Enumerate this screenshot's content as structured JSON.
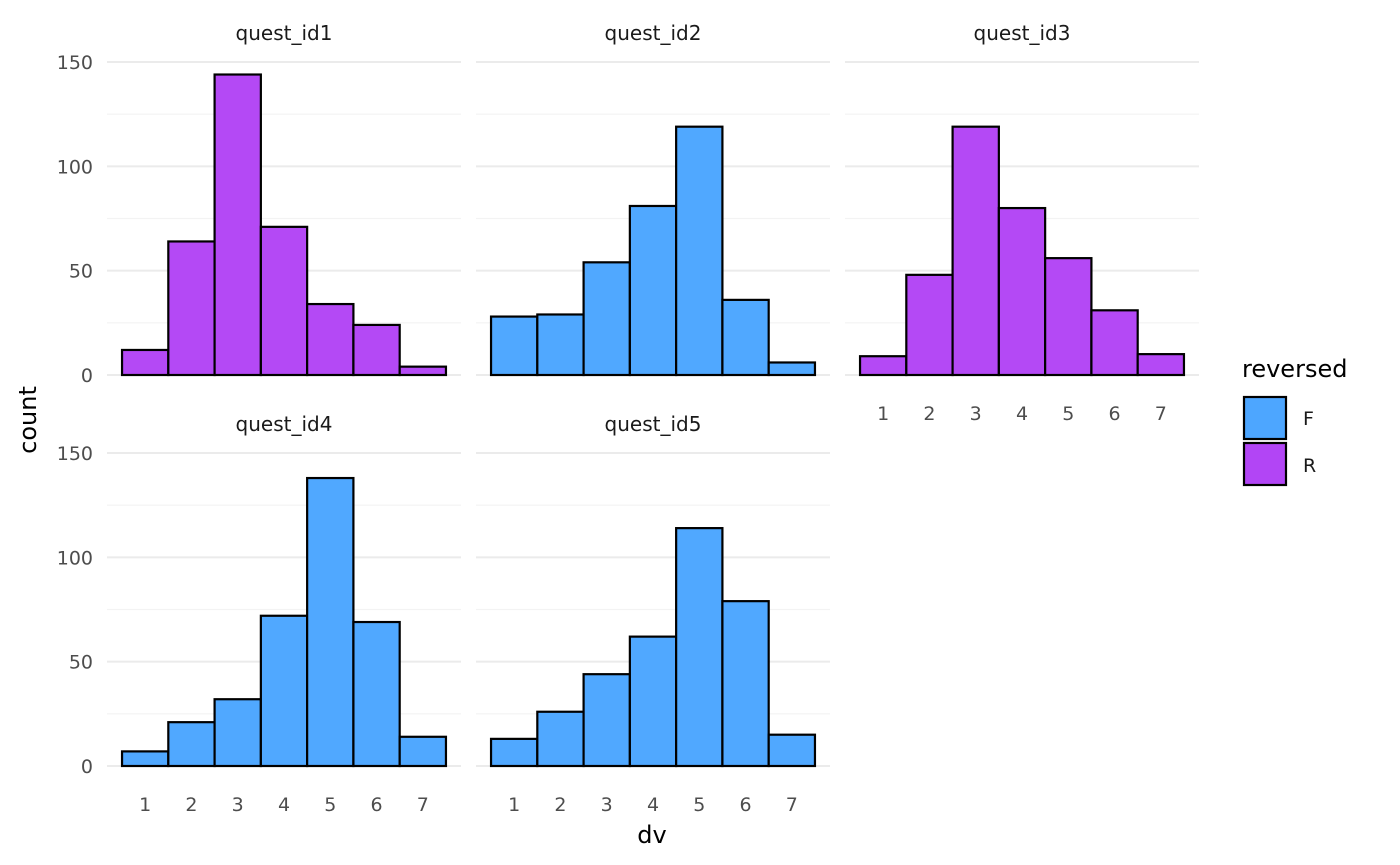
{
  "chart_data": {
    "type": "bar",
    "subtype": "faceted-histogram",
    "xlabel": "dv",
    "ylabel": "count",
    "ylim": [
      0,
      150
    ],
    "yticks": [
      0,
      50,
      100,
      150
    ],
    "x_categories": [
      "1",
      "2",
      "3",
      "4",
      "5",
      "6",
      "7"
    ],
    "legend": {
      "title": "reversed",
      "placement": "right",
      "entries": [
        {
          "label": "F",
          "color": "#4da6ff"
        },
        {
          "label": "R",
          "color": "#b245f5"
        }
      ]
    },
    "grid": true,
    "facets": [
      {
        "name": "quest_id1",
        "reversed": "R",
        "values": [
          12,
          64,
          144,
          71,
          34,
          24,
          4
        ]
      },
      {
        "name": "quest_id2",
        "reversed": "F",
        "values": [
          28,
          29,
          54,
          81,
          119,
          36,
          6
        ]
      },
      {
        "name": "quest_id3",
        "reversed": "R",
        "values": [
          9,
          48,
          119,
          80,
          56,
          31,
          10
        ]
      },
      {
        "name": "quest_id4",
        "reversed": "F",
        "values": [
          7,
          21,
          32,
          72,
          138,
          69,
          14
        ]
      },
      {
        "name": "quest_id5",
        "reversed": "F",
        "values": [
          13,
          26,
          44,
          62,
          114,
          79,
          15
        ]
      }
    ]
  }
}
